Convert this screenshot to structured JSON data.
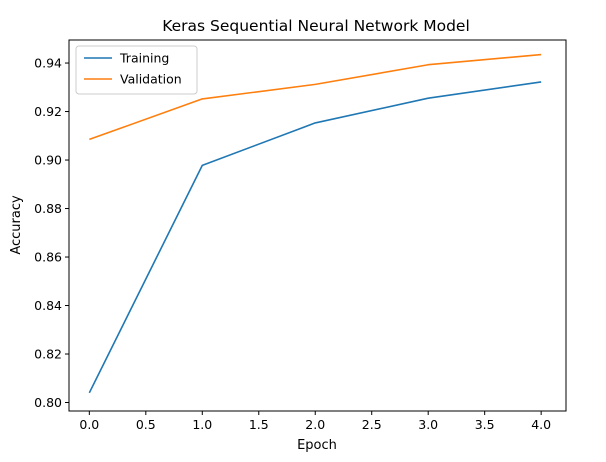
{
  "chart_data": {
    "type": "line",
    "title": "Keras Sequential Neural Network Model",
    "xlabel": "Epoch",
    "ylabel": "Accuracy",
    "xlim": [
      -0.18,
      4.22
    ],
    "ylim": [
      0.7965,
      0.9495
    ],
    "x_ticks": [
      0.0,
      0.5,
      1.0,
      1.5,
      2.0,
      2.5,
      3.0,
      3.5,
      4.0
    ],
    "x_tick_labels": [
      "0.0",
      "0.5",
      "1.0",
      "1.5",
      "2.0",
      "2.5",
      "3.0",
      "3.5",
      "4.0"
    ],
    "y_ticks": [
      0.8,
      0.82,
      0.84,
      0.86,
      0.88,
      0.9,
      0.92,
      0.94
    ],
    "y_tick_labels": [
      "0.80",
      "0.82",
      "0.84",
      "0.86",
      "0.88",
      "0.90",
      "0.92",
      "0.94"
    ],
    "x": [
      0,
      1,
      2,
      3,
      4
    ],
    "series": [
      {
        "name": "Training",
        "color": "#1f77b4",
        "values": [
          0.804,
          0.8978,
          0.9153,
          0.9255,
          0.9322
        ]
      },
      {
        "name": "Validation",
        "color": "#ff7f0e",
        "values": [
          0.9085,
          0.9252,
          0.9312,
          0.9393,
          0.9435
        ]
      }
    ],
    "grid": false,
    "legend_position": "top-left"
  }
}
